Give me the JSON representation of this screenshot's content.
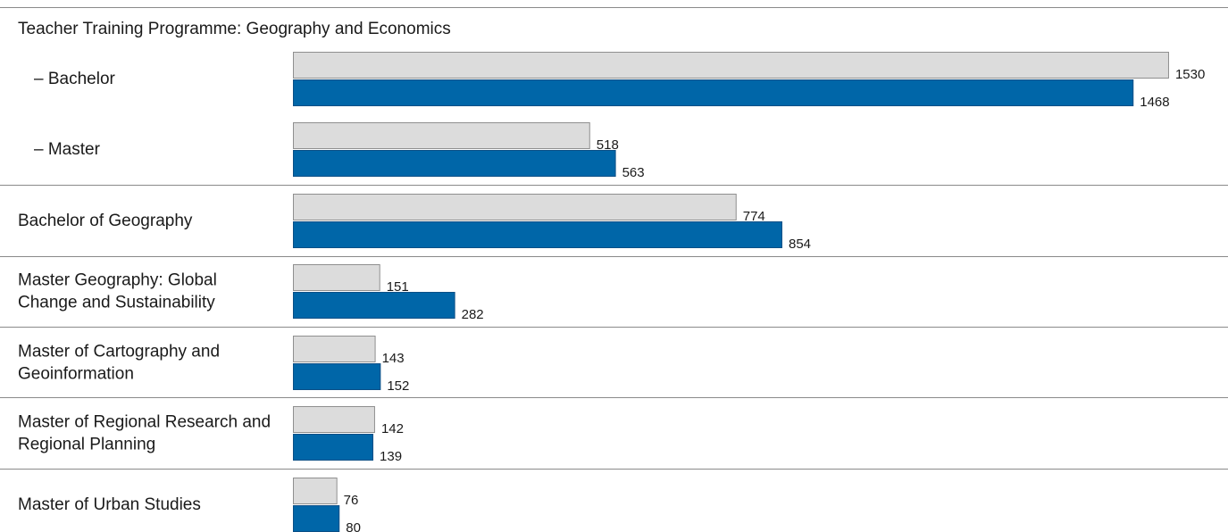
{
  "chart_data": {
    "type": "bar",
    "orientation": "horizontal",
    "grid": false,
    "legend": "none",
    "colors": {
      "series_1": "#dcdcdc",
      "series_2": "#0066a8",
      "text": "#1a1a1a",
      "divider": "#8a8a8a"
    },
    "groups": [
      {
        "label": "Teacher Training Programme: Geography and Economics",
        "rows": [
          {
            "label": "– Bachelor",
            "values": [
              1530,
              1468
            ]
          },
          {
            "label": "– Master",
            "values": [
              518,
              563
            ]
          }
        ]
      },
      {
        "label": "",
        "rows": [
          {
            "label": "Bachelor of Geography",
            "values": [
              774,
              854
            ]
          }
        ]
      },
      {
        "label": "",
        "rows": [
          {
            "label": "Master Geography: Global Change and Sustainability",
            "values": [
              151,
              282
            ]
          }
        ]
      },
      {
        "label": "",
        "rows": [
          {
            "label": "Master of Cartography and Geoinformation",
            "values": [
              143,
              152
            ]
          }
        ]
      },
      {
        "label": "",
        "rows": [
          {
            "label": "Master of Regional Research and Regional Planning",
            "values": [
              142,
              139
            ]
          }
        ]
      },
      {
        "label": "",
        "rows": [
          {
            "label": "Master of Urban Studies",
            "values": [
              76,
              80
            ]
          }
        ]
      }
    ]
  }
}
